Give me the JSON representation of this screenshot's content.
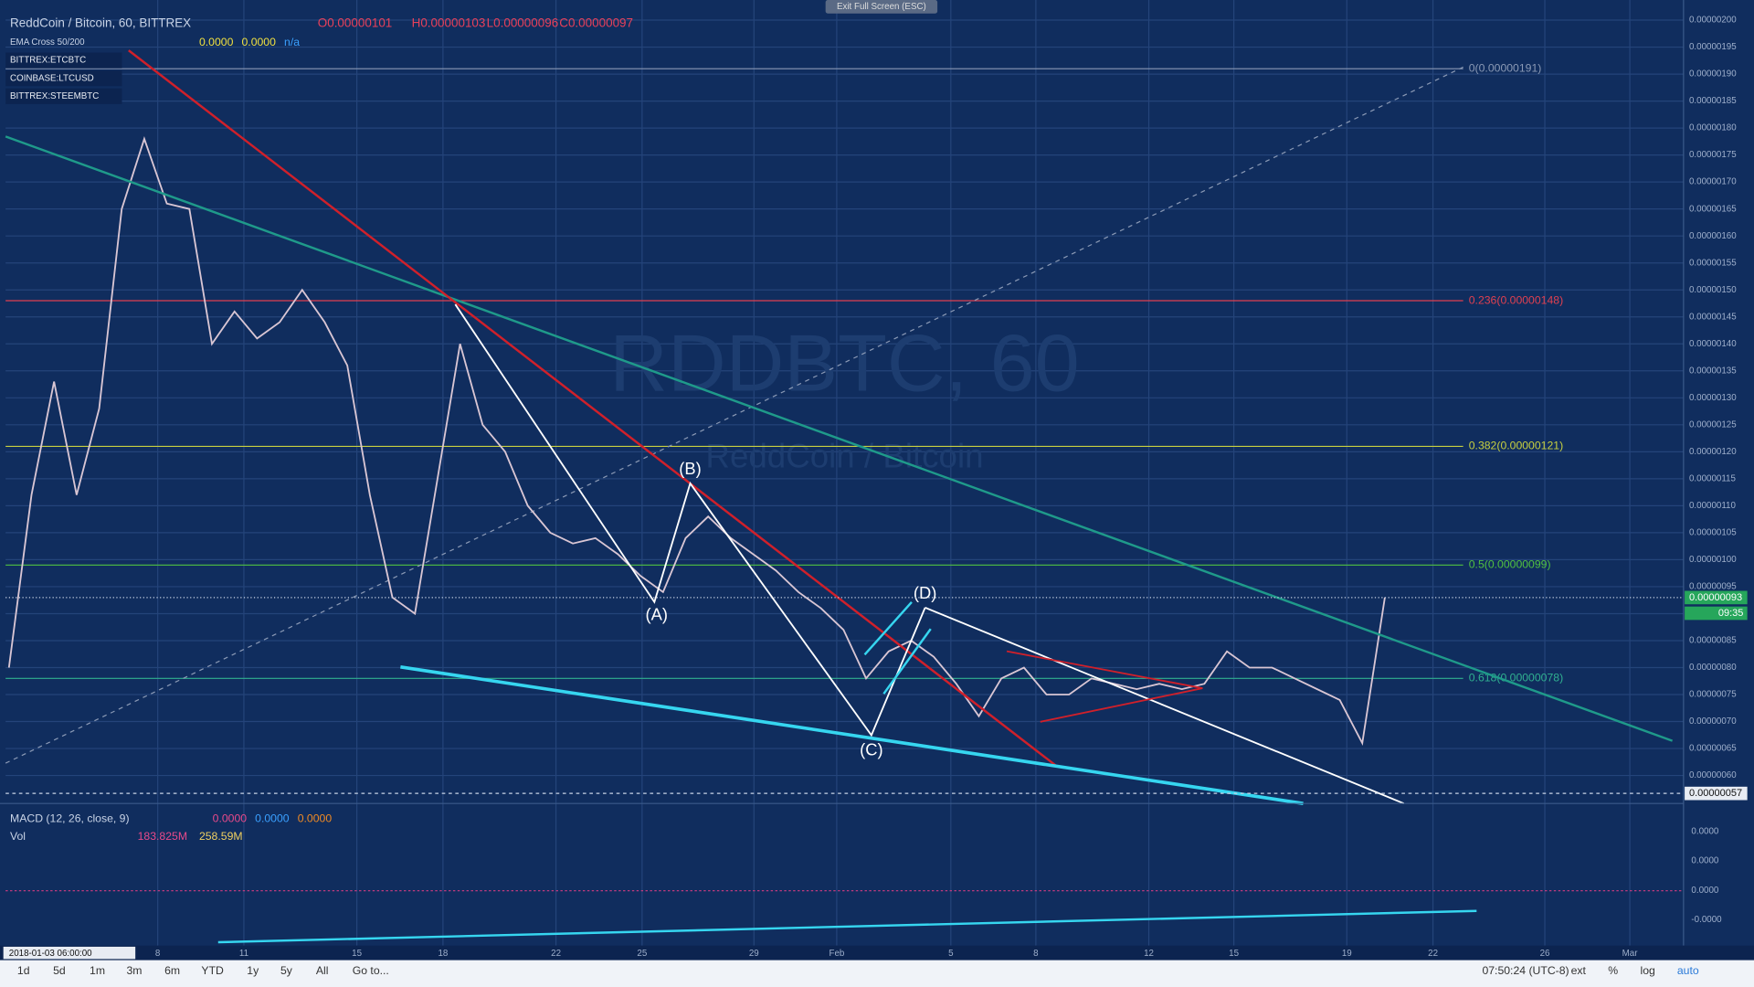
{
  "toolbar": {
    "symbol": "ReddCoin / Bitcoin, 60, BITTREX",
    "ohlc": [
      "O0.00000101",
      "H0.00000103",
      "L0.00000096",
      "C0.00000097"
    ],
    "exit": "Exit Full Screen (ESC)"
  },
  "indicator": {
    "name": "EMA Cross 50/200",
    "values": [
      "0.0000",
      "0.0000",
      "n/a"
    ]
  },
  "compare": [
    "BITTREX:ETCBTC",
    "COINBASE:LTCUSD",
    "BITTREX:STEEMBTC"
  ],
  "watermark": {
    "title": "RDDBTC, 60",
    "subtitle": "ReddCoin / Bitcoin"
  },
  "price_axis": {
    "ticks": [
      {
        "value": 2e-06,
        "label": "0.00000200"
      },
      {
        "value": 1.95e-06,
        "label": "0.00000195"
      },
      {
        "value": 1.9e-06,
        "label": "0.00000190"
      },
      {
        "value": 1.85e-06,
        "label": "0.00000185"
      },
      {
        "value": 1.8e-06,
        "label": "0.00000180"
      },
      {
        "value": 1.75e-06,
        "label": "0.00000175"
      },
      {
        "value": 1.7e-06,
        "label": "0.00000170"
      },
      {
        "value": 1.65e-06,
        "label": "0.00000165"
      },
      {
        "value": 1.6e-06,
        "label": "0.00000160"
      },
      {
        "value": 1.55e-06,
        "label": "0.00000155"
      },
      {
        "value": 1.5e-06,
        "label": "0.00000150"
      },
      {
        "value": 1.45e-06,
        "label": "0.00000145"
      },
      {
        "value": 1.4e-06,
        "label": "0.00000140"
      },
      {
        "value": 1.35e-06,
        "label": "0.00000135"
      },
      {
        "value": 1.3e-06,
        "label": "0.00000130"
      },
      {
        "value": 1.25e-06,
        "label": "0.00000125"
      },
      {
        "value": 1.2e-06,
        "label": "0.00000120"
      },
      {
        "value": 1.15e-06,
        "label": "0.00000115"
      },
      {
        "value": 1.1e-06,
        "label": "0.00000110"
      },
      {
        "value": 1.05e-06,
        "label": "0.00000105"
      },
      {
        "value": 1e-06,
        "label": "0.00000100"
      },
      {
        "value": 9.5e-07,
        "label": "0.00000095"
      },
      {
        "value": 9e-07,
        "label": "0.00000090"
      },
      {
        "value": 8.5e-07,
        "label": "0.00000085"
      },
      {
        "value": 8e-07,
        "label": "0.00000080"
      },
      {
        "value": 7.5e-07,
        "label": "0.00000075"
      },
      {
        "value": 7e-07,
        "label": "0.00000070"
      },
      {
        "value": 6.5e-07,
        "label": "0.00000065"
      },
      {
        "value": 6e-07,
        "label": "0.00000060"
      }
    ],
    "last_price": "0.00000093",
    "countdown": "09:35",
    "cursor_price": "0.00000057"
  },
  "fib_levels": [
    {
      "label": "0(0.00000191)",
      "price": 1.91e-06,
      "color": "#8a99b5"
    },
    {
      "label": "0.236(0.00000148)",
      "price": 1.48e-06,
      "color": "#e04050"
    },
    {
      "label": "0.382(0.00000121)",
      "price": 1.21e-06,
      "color": "#c8d040"
    },
    {
      "label": "0.5(0.00000099)",
      "price": 9.9e-07,
      "color": "#50c040"
    },
    {
      "label": "0.618(0.00000078)",
      "price": 7.8e-07,
      "color": "#30b090"
    }
  ],
  "waves": [
    "(A)",
    "(B)",
    "(C)",
    "(D)"
  ],
  "price": {
    "color": "#d9c6d4",
    "closes": [
      8e-07,
      1.12e-06,
      1.33e-06,
      1.12e-06,
      1.28e-06,
      1.65e-06,
      1.78e-06,
      1.66e-06,
      1.65e-06,
      1.4e-06,
      1.46e-06,
      1.41e-06,
      1.44e-06,
      1.5e-06,
      1.44e-06,
      1.36e-06,
      1.12e-06,
      9.3e-07,
      9e-07,
      1.15e-06,
      1.4e-06,
      1.25e-06,
      1.2e-06,
      1.1e-06,
      1.05e-06,
      1.03e-06,
      1.04e-06,
      1.01e-06,
      9.7e-07,
      9.4e-07,
      1.04e-06,
      1.08e-06,
      1.04e-06,
      1.01e-06,
      9.8e-07,
      9.4e-07,
      9.1e-07,
      8.7e-07,
      7.8e-07,
      8.3e-07,
      8.5e-07,
      8.2e-07,
      7.7e-07,
      7.1e-07,
      7.8e-07,
      8e-07,
      7.5e-07,
      7.5e-07,
      7.8e-07,
      7.7e-07,
      7.6e-07,
      7.7e-07,
      7.6e-07,
      7.7e-07,
      8.3e-07,
      8e-07,
      8e-07,
      7.8e-07,
      7.6e-07,
      7.4e-07,
      6.6e-07,
      9.3e-07
    ]
  },
  "dates": [
    "8",
    "11",
    "15",
    "18",
    "22",
    "25",
    "29",
    "Feb",
    "5",
    "8",
    "12",
    "15",
    "19",
    "22",
    "26",
    "Mar"
  ],
  "macd": {
    "name": "MACD (12, 26, close, 9)",
    "values": [
      "0.0000",
      "0.0000",
      "0.0000"
    ],
    "axis": [
      "0.0000",
      "0.0000",
      "0.0000",
      "-0.0000"
    ]
  },
  "volume": {
    "name": "Vol",
    "values": [
      "183.825M",
      "258.59M"
    ]
  },
  "footer": {
    "cursor_time": "2018-01-03 06:00:00",
    "ranges": [
      "1d",
      "5d",
      "1m",
      "3m",
      "6m",
      "YTD",
      "1y",
      "5y",
      "All"
    ],
    "goto": "Go to...",
    "clock": "07:50:24 (UTC-8)",
    "options": [
      "ext",
      "%",
      "log",
      "auto"
    ]
  }
}
